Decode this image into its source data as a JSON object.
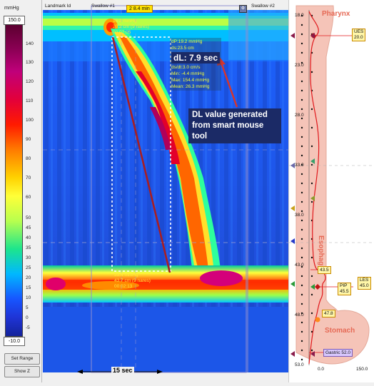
{
  "left_panel": {
    "unit": "mmHg",
    "max_value": "150.0",
    "min_value": "-10.0",
    "ticks": [
      "140",
      "130",
      "120",
      "110",
      "100",
      "90",
      "80",
      "70",
      "60",
      "50",
      "45",
      "40",
      "35",
      "30",
      "25",
      "20",
      "15",
      "10",
      "5",
      "0",
      "-5"
    ],
    "buttons": {
      "set_range": "Set Range",
      "show_z": "Show Z"
    }
  },
  "header": {
    "landmark_label": "Landmark Id",
    "swallow1_label": "Swallow #1",
    "time_badge": "2 8.4 min",
    "swallow2_label": "Swallow #2"
  },
  "annotations": {
    "top_box": [
      "16.2 mmHg",
      "20.2 cm (9 nares)",
      "00:02:05"
    ],
    "stats": {
      "dp": "dP:19.2 mmHg",
      "ds": "ds:23.5 cm",
      "dl": "dL: 7.9 sec",
      "ds_dt": "ds/dt:3.0 cm/s",
      "min": "Min: -4.4 mmHg",
      "max": "Max: 154.4 mmHg",
      "mean": "Mean: 26.3 mmHg"
    },
    "callout": "DL value generated from smart mouse tool",
    "bottom_box": [
      "35.4 mmHg",
      "43.7 cm (9 nares)",
      "00:02:13"
    ],
    "time_span": "15 sec"
  },
  "right_panel": {
    "labels": {
      "pharynx": "Pharynx",
      "esophagus": "Esophagus",
      "stomach": "Stomach"
    },
    "depths": [
      "18.0",
      "23.0",
      "28.0",
      "33.0",
      "38.0",
      "43.0",
      "48.0",
      "53.0"
    ],
    "axis": [
      "0.0",
      "150.0"
    ],
    "markers": {
      "ues": "UES",
      "ues_val": "20.0",
      "les": "LES",
      "les_val": "45.0",
      "pip": "PIP",
      "pip_val": "45.5",
      "m43": "43.5",
      "m47": "47.8",
      "gastric": "Gastric 52.0"
    }
  },
  "colors": {
    "accent": "#e66a56",
    "annotation_blue": "#1b2a66"
  }
}
